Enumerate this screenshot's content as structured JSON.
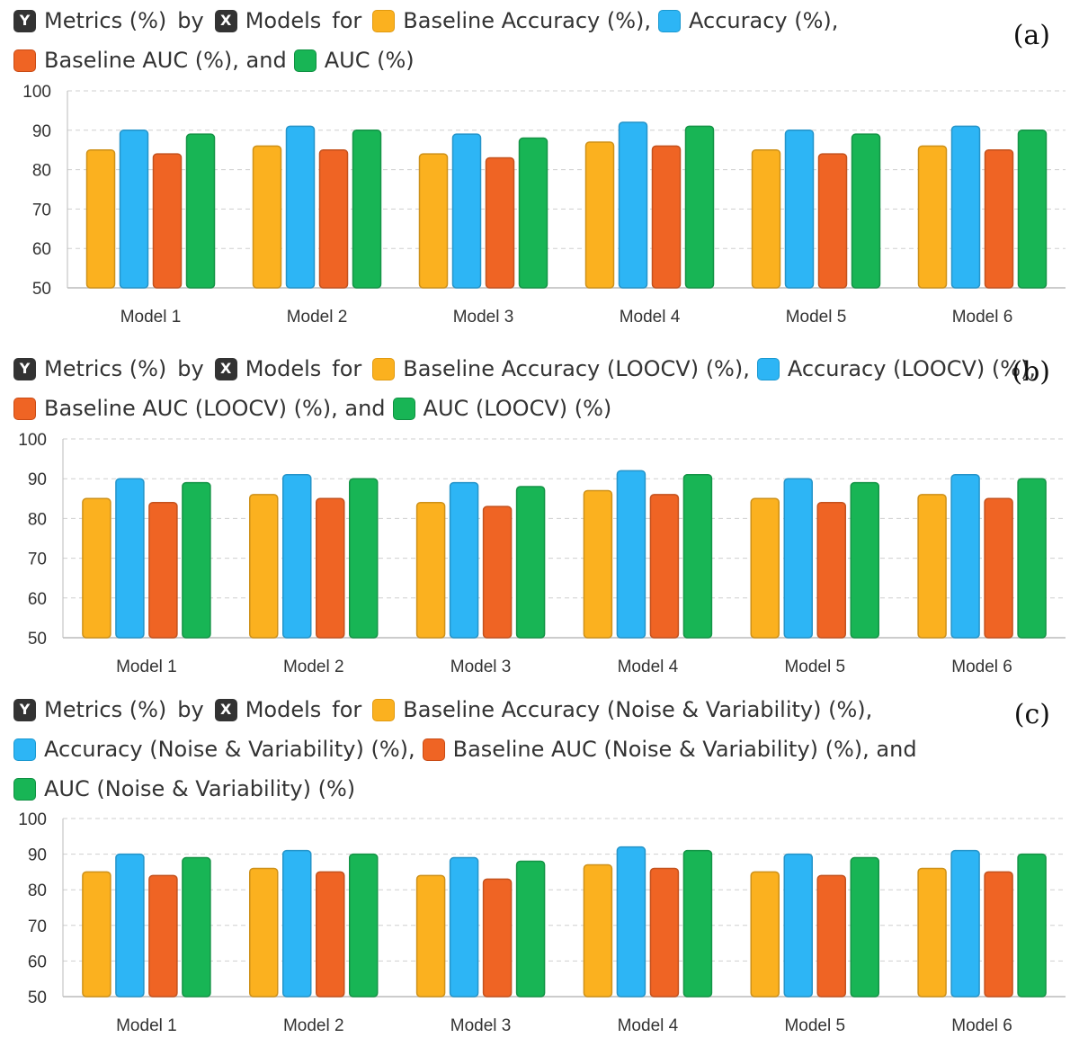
{
  "colors": {
    "baseline_accuracy": "#FBB11F",
    "accuracy": "#2DB5F5",
    "baseline_auc": "#EF6424",
    "auc": "#18B555",
    "badge": "#333333",
    "grid": "#cfcfcf"
  },
  "icons": {
    "y_badge": "Y",
    "x_badge": "X"
  },
  "panels": [
    {
      "label": "(a)",
      "legend": {
        "line1": {
          "y_text": "Metrics (%)",
          "by": "by",
          "x_text": "Models",
          "for": "for",
          "s1": "Baseline Accuracy (%),",
          "s2": "Accuracy (%),"
        },
        "line2": {
          "s3": "Baseline AUC (%), and",
          "s4": "AUC (%)"
        }
      }
    },
    {
      "label": "(b)",
      "legend": {
        "line1": {
          "y_text": "Metrics (%)",
          "by": "by",
          "x_text": "Models",
          "for": "for",
          "s1": "Baseline Accuracy (LOOCV) (%),",
          "s2": "Accuracy (LOOCV) (%),"
        },
        "line2": {
          "s3": "Baseline AUC (LOOCV) (%), and",
          "s4": "AUC (LOOCV) (%)"
        }
      }
    },
    {
      "label": "(c)",
      "legend": {
        "line1": {
          "y_text": "Metrics (%)",
          "by": "by",
          "x_text": "Models",
          "for": "for",
          "s1": "Baseline Accuracy (Noise & Variability) (%),"
        },
        "line2": {
          "s2": "Accuracy (Noise & Variability) (%),",
          "s3": "Baseline AUC (Noise & Variability) (%), and"
        },
        "line3": {
          "s4": "AUC (Noise & Variability) (%)"
        }
      }
    }
  ],
  "chart_data": [
    {
      "type": "bar",
      "categories": [
        "Model 1",
        "Model 2",
        "Model 3",
        "Model 4",
        "Model 5",
        "Model 6"
      ],
      "ylim": [
        50,
        100
      ],
      "yticks": [
        50,
        60,
        70,
        80,
        90,
        100
      ],
      "grid": true,
      "legend_position": "top-left",
      "series": [
        {
          "name": "Baseline Accuracy (%)",
          "color": "#FBB11F",
          "values": [
            85,
            86,
            84,
            87,
            85,
            86
          ]
        },
        {
          "name": "Accuracy (%)",
          "color": "#2DB5F5",
          "values": [
            90,
            91,
            89,
            92,
            90,
            91
          ]
        },
        {
          "name": "Baseline AUC (%)",
          "color": "#EF6424",
          "values": [
            84,
            85,
            83,
            86,
            84,
            85
          ]
        },
        {
          "name": "AUC (%)",
          "color": "#18B555",
          "values": [
            89,
            90,
            88,
            91,
            89,
            90
          ]
        }
      ]
    },
    {
      "type": "bar",
      "categories": [
        "Model 1",
        "Model 2",
        "Model 3",
        "Model 4",
        "Model 5",
        "Model 6"
      ],
      "ylim": [
        50,
        100
      ],
      "yticks": [
        50,
        60,
        70,
        80,
        90,
        100
      ],
      "grid": true,
      "legend_position": "top-left",
      "series": [
        {
          "name": "Baseline Accuracy (LOOCV) (%)",
          "color": "#FBB11F",
          "values": [
            85,
            86,
            84,
            87,
            85,
            86
          ]
        },
        {
          "name": "Accuracy (LOOCV) (%)",
          "color": "#2DB5F5",
          "values": [
            90,
            91,
            89,
            92,
            90,
            91
          ]
        },
        {
          "name": "Baseline AUC (LOOCV) (%)",
          "color": "#EF6424",
          "values": [
            84,
            85,
            83,
            86,
            84,
            85
          ]
        },
        {
          "name": "AUC (LOOCV) (%)",
          "color": "#18B555",
          "values": [
            89,
            90,
            88,
            91,
            89,
            90
          ]
        }
      ]
    },
    {
      "type": "bar",
      "categories": [
        "Model 1",
        "Model 2",
        "Model 3",
        "Model 4",
        "Model 5",
        "Model 6"
      ],
      "ylim": [
        50,
        100
      ],
      "yticks": [
        50,
        60,
        70,
        80,
        90,
        100
      ],
      "grid": true,
      "legend_position": "top-left",
      "series": [
        {
          "name": "Baseline Accuracy (Noise & Variability) (%)",
          "color": "#FBB11F",
          "values": [
            85,
            86,
            84,
            87,
            85,
            86
          ]
        },
        {
          "name": "Accuracy (Noise & Variability) (%)",
          "color": "#2DB5F5",
          "values": [
            90,
            91,
            89,
            92,
            90,
            91
          ]
        },
        {
          "name": "Baseline AUC (Noise & Variability) (%)",
          "color": "#EF6424",
          "values": [
            84,
            85,
            83,
            86,
            84,
            85
          ]
        },
        {
          "name": "AUC (Noise & Variability) (%)",
          "color": "#18B555",
          "values": [
            89,
            90,
            88,
            91,
            89,
            90
          ]
        }
      ]
    }
  ]
}
